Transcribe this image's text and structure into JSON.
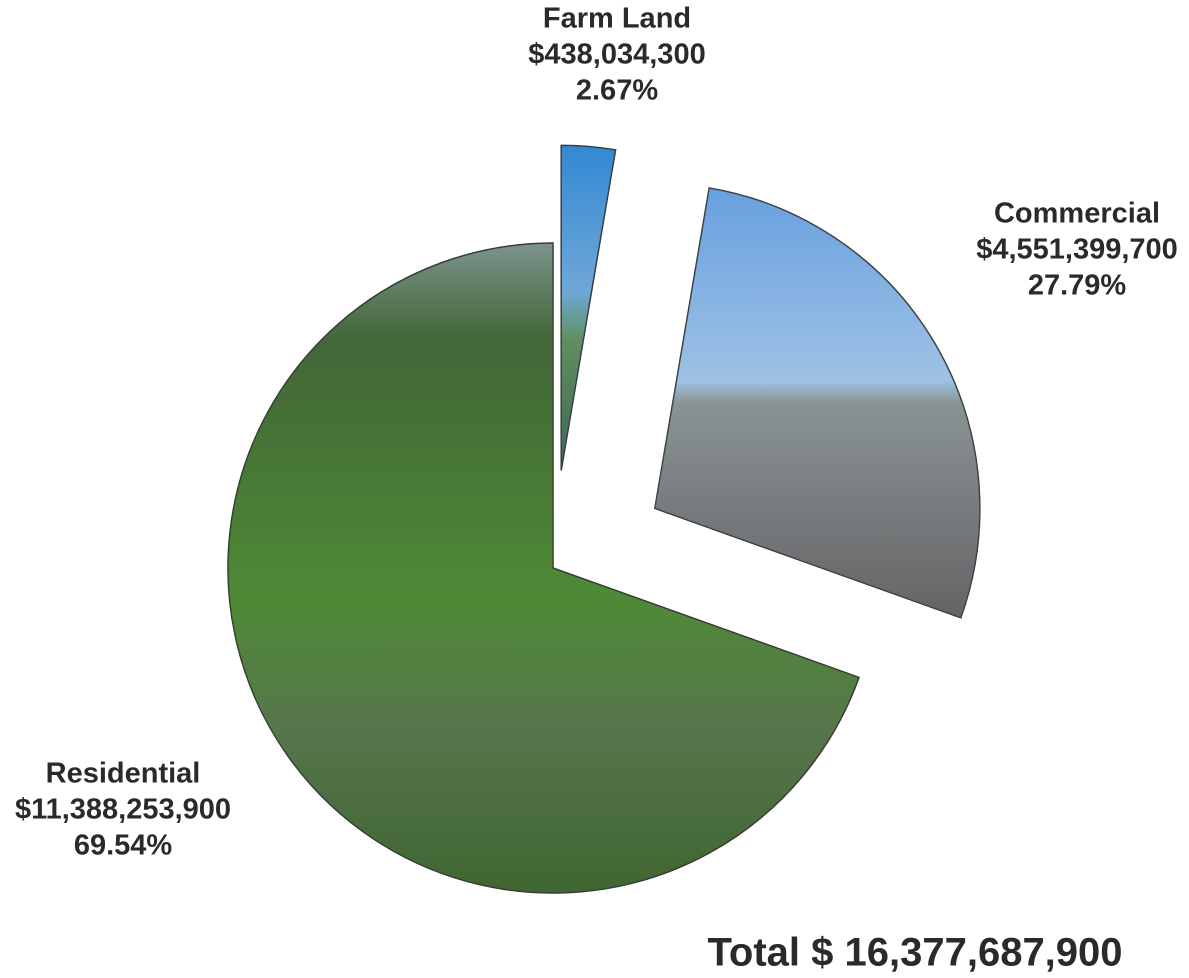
{
  "chart_data": {
    "type": "pie",
    "categories": [
      "Farm Land",
      "Commercial",
      "Residential"
    ],
    "values": [
      438034300,
      4551399700,
      11388253900
    ],
    "value_labels": [
      "$438,034,300",
      "$4,551,399,700",
      "$11,388,253,900"
    ],
    "percent_labels": [
      "2.67%",
      "27.79%",
      "69.54%"
    ],
    "colors": [
      "#3f8fd0",
      "#7eaee0",
      "#4f8a3a"
    ],
    "total": "Total $ 16,377,687,900"
  }
}
